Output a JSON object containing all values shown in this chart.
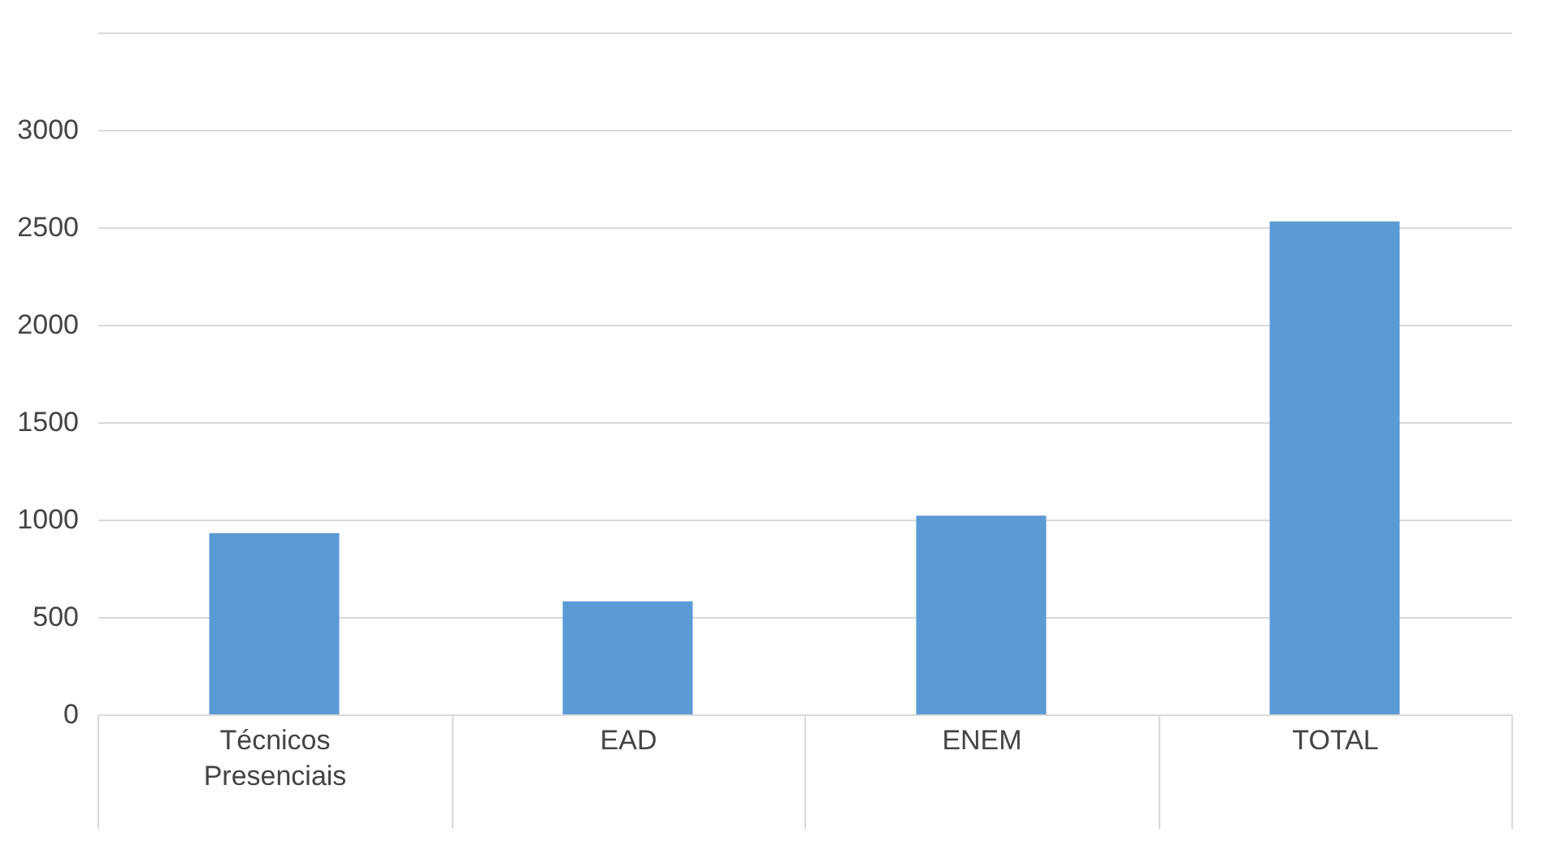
{
  "chart_data": {
    "type": "bar",
    "categories": [
      "Técnicos Presenciais",
      "EAD",
      "ENEM",
      "TOTAL"
    ],
    "values": [
      930,
      580,
      1020,
      2530
    ],
    "color": "#5b9bd5",
    "ylim": [
      0,
      3500
    ],
    "yticks": [
      0,
      500,
      1000,
      1500,
      2000,
      2500,
      3000,
      {
        "value": 3500,
        "label": null
      }
    ],
    "grid": "y"
  }
}
